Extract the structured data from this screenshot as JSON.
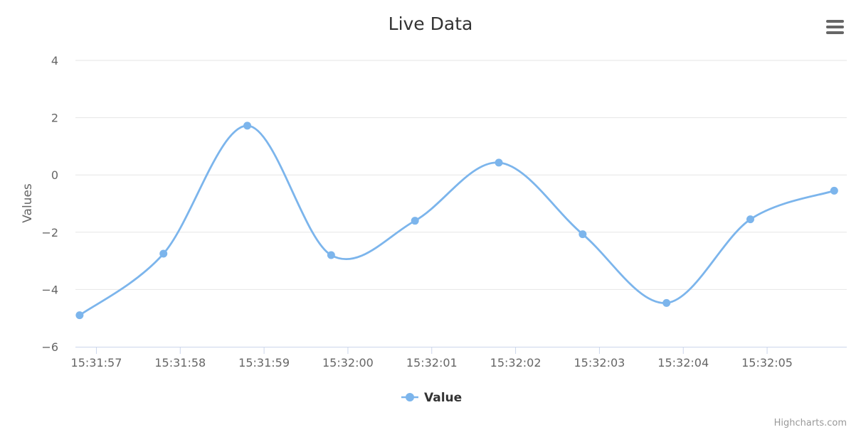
{
  "chart_data": {
    "type": "line",
    "title": "Live Data",
    "ylabel": "Values",
    "xlabel": "",
    "ylim": [
      -6,
      4
    ],
    "y_ticks": [
      4,
      2,
      0,
      -2,
      -4,
      -6
    ],
    "y_tick_labels": [
      "4",
      "2",
      "0",
      "−2",
      "−4",
      "−6"
    ],
    "x_ticks": [
      "15:31:57",
      "15:31:58",
      "15:31:59",
      "15:32:00",
      "15:32:01",
      "15:32:02",
      "15:32:03",
      "15:32:04",
      "15:32:05"
    ],
    "x_range": [
      "15:31:56.75",
      "15:32:05.95"
    ],
    "series": [
      {
        "name": "Value",
        "color": "#7cb5ec",
        "smooth": true,
        "markers": true,
        "x": [
          "15:31:56.80",
          "15:31:57.80",
          "15:31:58.80",
          "15:31:59.80",
          "15:32:00.80",
          "15:32:01.80",
          "15:32:02.80",
          "15:32:03.80",
          "15:32:04.80",
          "15:32:05.80"
        ],
        "values": [
          -4.9,
          -2.75,
          1.72,
          -2.8,
          -1.6,
          0.43,
          -2.07,
          -4.47,
          -1.55,
          -0.55
        ]
      }
    ],
    "grid": true,
    "legend": "bottom-center"
  },
  "credits": "Highcharts.com",
  "menu": {
    "icon": "hamburger-menu-icon"
  }
}
